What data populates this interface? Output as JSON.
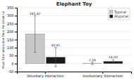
{
  "chart_data": {
    "type": "bar",
    "title": "Elephant Toy",
    "y_label": "Mean Total Interaction Time Per Infant (s)",
    "categories": [
      "Voluntary Interaction",
      "Involuntary Interaction"
    ],
    "series": [
      {
        "name": "Typical",
        "color": "#c8c8c8",
        "values": [
          185.42,
          2.56
        ],
        "errors": [
          115.0,
          8.0
        ],
        "value_labels": [
          "185.42",
          "2.56"
        ]
      },
      {
        "name": "Atypical",
        "color": "#1a1a1a",
        "values": [
          40.41,
          14.0
        ],
        "errors": [
          60.0,
          11.0
        ],
        "value_labels": [
          "40.41",
          "14.00"
        ]
      }
    ],
    "ylim": [
      -50,
      350
    ],
    "yticks": [
      -50,
      0,
      50,
      100,
      150,
      200,
      250,
      300,
      350
    ],
    "grid": true,
    "legend": "upper right",
    "data_labels": true
  }
}
